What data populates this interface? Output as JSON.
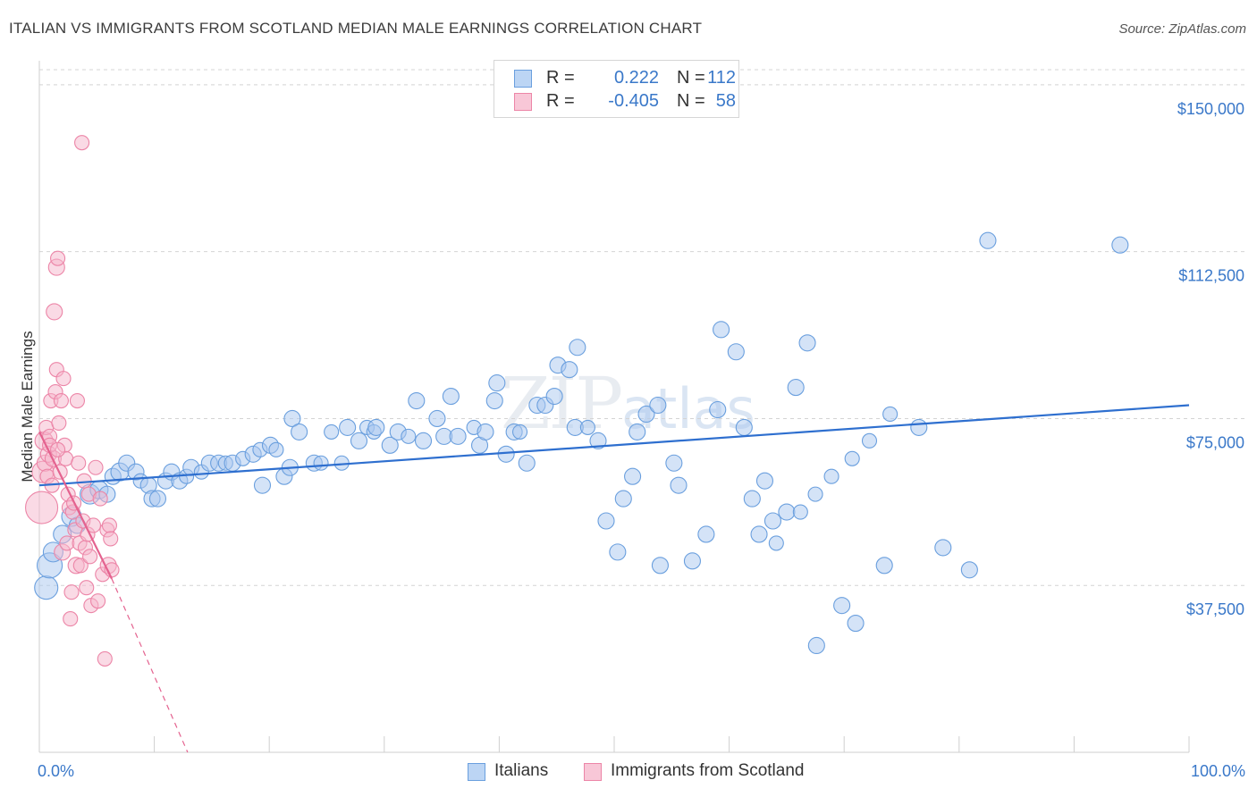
{
  "header": {
    "title": "ITALIAN VS IMMIGRANTS FROM SCOTLAND MEDIAN MALE EARNINGS CORRELATION CHART",
    "source": "Source: ZipAtlas.com"
  },
  "watermark": {
    "zip": "ZIP",
    "atlas": "atlas"
  },
  "legend": {
    "rows": [
      {
        "r_label": "R =",
        "r_value": "0.222",
        "n_label": "N =",
        "n_value": "112"
      },
      {
        "r_label": "R =",
        "r_value": "-0.405",
        "n_label": "N =",
        "n_value": "58"
      }
    ]
  },
  "bottom_legend": {
    "italians": "Italians",
    "scotland": "Immigrants from Scotland"
  },
  "colors": {
    "blue_fill": "#a9c8f0",
    "blue_stroke": "#6a9fde",
    "blue_line": "#2e6fcf",
    "pink_fill": "#f5b6cb",
    "pink_stroke": "#ec85a7",
    "pink_line": "#e4628f",
    "grid": "#d4d4d4",
    "axis_text": "#3a78c9"
  },
  "chart_data": {
    "type": "scatter",
    "title": "ITALIAN VS IMMIGRANTS FROM SCOTLAND MEDIAN MALE EARNINGS CORRELATION CHART",
    "xlabel": "",
    "ylabel": "Median Male Earnings",
    "xlim": [
      0,
      100
    ],
    "ylim": [
      0,
      155000
    ],
    "x_tick_labels": [
      "0.0%",
      "100.0%"
    ],
    "y_ticks": [
      37500,
      75000,
      112500,
      150000
    ],
    "y_tick_labels": [
      "$37,500",
      "$75,000",
      "$112,500",
      "$150,000"
    ],
    "grid": true,
    "series": [
      {
        "name": "Italians",
        "r": 0.222,
        "n": 112,
        "trend": {
          "x": [
            0,
            100
          ],
          "y": [
            60000,
            78000
          ]
        },
        "points": [
          [
            0.6,
            37000,
            13
          ],
          [
            0.9,
            42000,
            14
          ],
          [
            1.2,
            45000,
            11
          ],
          [
            2,
            49000,
            10
          ],
          [
            2.8,
            53000,
            11
          ],
          [
            3.3,
            51000,
            9
          ],
          [
            4.4,
            58000,
            11
          ],
          [
            5.2,
            59000,
            10
          ],
          [
            5.9,
            58000,
            9
          ],
          [
            6.4,
            62000,
            9
          ],
          [
            7,
            63000,
            10
          ],
          [
            7.6,
            65000,
            9
          ],
          [
            8.4,
            63000,
            9
          ],
          [
            8.8,
            61000,
            8
          ],
          [
            9.5,
            60000,
            9
          ],
          [
            9.8,
            57000,
            9
          ],
          [
            10.3,
            57000,
            9
          ],
          [
            11,
            61000,
            9
          ],
          [
            11.5,
            63000,
            9
          ],
          [
            12.2,
            61000,
            9
          ],
          [
            12.8,
            62000,
            8
          ],
          [
            13.2,
            64000,
            9
          ],
          [
            14.1,
            63000,
            8
          ],
          [
            14.8,
            65000,
            9
          ],
          [
            15.6,
            65000,
            9
          ],
          [
            16.2,
            65000,
            8
          ],
          [
            16.8,
            65000,
            9
          ],
          [
            17.7,
            66000,
            8
          ],
          [
            18.6,
            67000,
            9
          ],
          [
            19.2,
            68000,
            8
          ],
          [
            19.4,
            60000,
            9
          ],
          [
            20.1,
            69000,
            9
          ],
          [
            20.6,
            68000,
            8
          ],
          [
            21.3,
            62000,
            9
          ],
          [
            21.8,
            64000,
            9
          ],
          [
            22,
            75000,
            9
          ],
          [
            22.6,
            72000,
            9
          ],
          [
            23.9,
            65000,
            9
          ],
          [
            24.5,
            65000,
            8
          ],
          [
            25.4,
            72000,
            8
          ],
          [
            26.3,
            65000,
            8
          ],
          [
            26.8,
            73000,
            9
          ],
          [
            27.8,
            70000,
            9
          ],
          [
            28.5,
            73000,
            8
          ],
          [
            29.1,
            72000,
            8
          ],
          [
            29.3,
            73000,
            9
          ],
          [
            30.5,
            69000,
            9
          ],
          [
            31.2,
            72000,
            9
          ],
          [
            32.1,
            71000,
            8
          ],
          [
            32.8,
            79000,
            9
          ],
          [
            33.4,
            70000,
            9
          ],
          [
            34.6,
            75000,
            9
          ],
          [
            35.2,
            71000,
            9
          ],
          [
            35.8,
            80000,
            9
          ],
          [
            36.4,
            71000,
            9
          ],
          [
            37.8,
            73000,
            8
          ],
          [
            38.3,
            69000,
            9
          ],
          [
            38.8,
            72000,
            9
          ],
          [
            39.6,
            79000,
            9
          ],
          [
            39.8,
            83000,
            9
          ],
          [
            40.6,
            67000,
            9
          ],
          [
            41.3,
            72000,
            9
          ],
          [
            41.8,
            72000,
            8
          ],
          [
            42.4,
            65000,
            9
          ],
          [
            43.3,
            78000,
            9
          ],
          [
            44,
            78000,
            9
          ],
          [
            44.8,
            80000,
            9
          ],
          [
            45.1,
            87000,
            9
          ],
          [
            46.1,
            86000,
            9
          ],
          [
            46.6,
            73000,
            9
          ],
          [
            46.8,
            91000,
            9
          ],
          [
            47.7,
            73000,
            8
          ],
          [
            48.6,
            70000,
            9
          ],
          [
            49.3,
            52000,
            9
          ],
          [
            50.3,
            45000,
            9
          ],
          [
            50.8,
            57000,
            9
          ],
          [
            51.6,
            62000,
            9
          ],
          [
            52,
            72000,
            9
          ],
          [
            52.8,
            76000,
            9
          ],
          [
            53.8,
            78000,
            9
          ],
          [
            54,
            42000,
            9
          ],
          [
            55.2,
            65000,
            9
          ],
          [
            55.6,
            60000,
            9
          ],
          [
            56.8,
            43000,
            9
          ],
          [
            58,
            49000,
            9
          ],
          [
            59,
            77000,
            9
          ],
          [
            59.3,
            95000,
            9
          ],
          [
            60.6,
            90000,
            9
          ],
          [
            61.3,
            73000,
            9
          ],
          [
            62,
            57000,
            9
          ],
          [
            62.6,
            49000,
            9
          ],
          [
            63.1,
            61000,
            9
          ],
          [
            63.8,
            52000,
            9
          ],
          [
            65,
            54000,
            9
          ],
          [
            65.8,
            82000,
            9
          ],
          [
            66.8,
            92000,
            9
          ],
          [
            67.6,
            24000,
            9
          ],
          [
            69.8,
            33000,
            9
          ],
          [
            71,
            29000,
            9
          ],
          [
            73.5,
            42000,
            9
          ],
          [
            76.5,
            73000,
            9
          ],
          [
            78.6,
            46000,
            9
          ],
          [
            80.9,
            41000,
            9
          ],
          [
            82.5,
            115000,
            9
          ],
          [
            94,
            114000,
            9
          ],
          [
            74,
            76000,
            8
          ],
          [
            72.2,
            70000,
            8
          ],
          [
            70.7,
            66000,
            8
          ],
          [
            68.9,
            62000,
            8
          ],
          [
            67.5,
            58000,
            8
          ],
          [
            66.2,
            54000,
            8
          ],
          [
            64.1,
            47000,
            8
          ]
        ]
      },
      {
        "name": "Immigrants from Scotland",
        "r": -0.405,
        "n": 58,
        "trend_solid": {
          "x": [
            0,
            6.3
          ],
          "y": [
            72000,
            39000
          ]
        },
        "trend_dashed": {
          "x": [
            6.3,
            12.9
          ],
          "y": [
            39000,
            0
          ]
        },
        "points": [
          [
            0.2,
            55000,
            18
          ],
          [
            0.3,
            63000,
            12
          ],
          [
            0.4,
            70000,
            10
          ],
          [
            0.5,
            65000,
            9
          ],
          [
            0.6,
            73000,
            8
          ],
          [
            0.7,
            62000,
            8
          ],
          [
            0.8,
            67000,
            9
          ],
          [
            0.9,
            71000,
            8
          ],
          [
            1,
            79000,
            8
          ],
          [
            1.1,
            60000,
            8
          ],
          [
            1.2,
            66000,
            9
          ],
          [
            1.3,
            99000,
            9
          ],
          [
            1.4,
            81000,
            8
          ],
          [
            1.5,
            86000,
            8
          ],
          [
            1.5,
            109000,
            9
          ],
          [
            1.6,
            111000,
            8
          ],
          [
            1.7,
            74000,
            8
          ],
          [
            1.8,
            63000,
            8
          ],
          [
            1.9,
            79000,
            8
          ],
          [
            2,
            45000,
            9
          ],
          [
            2.1,
            84000,
            8
          ],
          [
            2.2,
            69000,
            8
          ],
          [
            2.3,
            66000,
            8
          ],
          [
            2.4,
            47000,
            8
          ],
          [
            2.5,
            58000,
            8
          ],
          [
            2.6,
            55000,
            8
          ],
          [
            2.7,
            30000,
            8
          ],
          [
            2.8,
            36000,
            8
          ],
          [
            2.9,
            54000,
            8
          ],
          [
            3,
            56000,
            8
          ],
          [
            3.1,
            50000,
            8
          ],
          [
            3.2,
            42000,
            9
          ],
          [
            3.3,
            79000,
            8
          ],
          [
            3.4,
            65000,
            8
          ],
          [
            3.5,
            47000,
            8
          ],
          [
            3.6,
            42000,
            8
          ],
          [
            3.7,
            137000,
            8
          ],
          [
            3.8,
            52000,
            8
          ],
          [
            3.9,
            61000,
            8
          ],
          [
            4,
            46000,
            8
          ],
          [
            4.1,
            37000,
            8
          ],
          [
            4.2,
            49000,
            8
          ],
          [
            4.3,
            58000,
            8
          ],
          [
            4.4,
            44000,
            8
          ],
          [
            4.5,
            33000,
            8
          ],
          [
            4.7,
            51000,
            8
          ],
          [
            4.9,
            64000,
            8
          ],
          [
            5.1,
            34000,
            8
          ],
          [
            5.3,
            57000,
            8
          ],
          [
            5.5,
            40000,
            8
          ],
          [
            5.7,
            21000,
            8
          ],
          [
            5.9,
            50000,
            8
          ],
          [
            6,
            42000,
            9
          ],
          [
            6.1,
            51000,
            8
          ],
          [
            6.2,
            48000,
            8
          ],
          [
            6.3,
            41000,
            8
          ],
          [
            0.9,
            69000,
            8
          ],
          [
            1.6,
            68000,
            8
          ]
        ]
      }
    ]
  }
}
